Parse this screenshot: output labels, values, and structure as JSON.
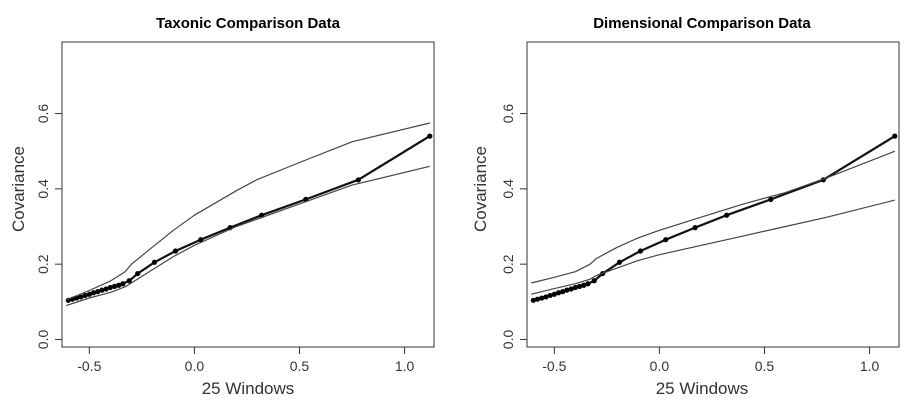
{
  "chart_data": [
    {
      "type": "line",
      "title": "Taxonic Comparison Data",
      "xlabel": "25 Windows",
      "ylabel": "Covariance",
      "xlim": [
        -0.63,
        1.14
      ],
      "ylim": [
        -0.02,
        0.79
      ],
      "xticks": [
        -0.5,
        0.0,
        0.5,
        1.0
      ],
      "xtick_labels": [
        "-0.5",
        "0.0",
        "0.5",
        "1.0"
      ],
      "yticks": [
        0.0,
        0.2,
        0.4,
        0.6
      ],
      "ytick_labels": [
        "0.0",
        "0.2",
        "0.4",
        "0.6"
      ],
      "grid": false,
      "series": [
        {
          "role": "observed",
          "markers": true,
          "x": [
            -0.6,
            -0.58,
            -0.56,
            -0.54,
            -0.52,
            -0.5,
            -0.48,
            -0.46,
            -0.44,
            -0.42,
            -0.4,
            -0.38,
            -0.36,
            -0.34,
            -0.31,
            -0.27,
            -0.19,
            -0.09,
            0.03,
            0.17,
            0.32,
            0.53,
            0.78,
            1.12
          ],
          "y": [
            0.104,
            0.107,
            0.11,
            0.113,
            0.117,
            0.12,
            0.124,
            0.127,
            0.131,
            0.134,
            0.138,
            0.141,
            0.144,
            0.148,
            0.156,
            0.175,
            0.205,
            0.235,
            0.265,
            0.297,
            0.33,
            0.372,
            0.424,
            0.54
          ]
        },
        {
          "role": "upper-band",
          "markers": false,
          "x": [
            -0.61,
            -0.5,
            -0.4,
            -0.33,
            -0.3,
            -0.2,
            -0.1,
            0.0,
            0.2,
            0.3,
            0.5,
            0.75,
            1.12
          ],
          "y": [
            0.105,
            0.13,
            0.155,
            0.18,
            0.2,
            0.245,
            0.29,
            0.33,
            0.395,
            0.425,
            0.47,
            0.525,
            0.575
          ]
        },
        {
          "role": "lower-band",
          "markers": false,
          "x": [
            -0.61,
            -0.5,
            -0.4,
            -0.33,
            -0.3,
            -0.2,
            -0.1,
            0.0,
            0.2,
            0.3,
            0.5,
            0.75,
            1.12
          ],
          "y": [
            0.09,
            0.11,
            0.125,
            0.14,
            0.15,
            0.185,
            0.22,
            0.25,
            0.3,
            0.32,
            0.36,
            0.41,
            0.46
          ]
        }
      ]
    },
    {
      "type": "line",
      "title": "Dimensional Comparison Data",
      "xlabel": "25 Windows",
      "ylabel": "Covariance",
      "xlim": [
        -0.63,
        1.14
      ],
      "ylim": [
        -0.02,
        0.79
      ],
      "xticks": [
        -0.5,
        0.0,
        0.5,
        1.0
      ],
      "xtick_labels": [
        "-0.5",
        "0.0",
        "0.5",
        "1.0"
      ],
      "yticks": [
        0.0,
        0.2,
        0.4,
        0.6
      ],
      "ytick_labels": [
        "0.0",
        "0.2",
        "0.4",
        "0.6"
      ],
      "grid": false,
      "series": [
        {
          "role": "observed",
          "markers": true,
          "x": [
            -0.6,
            -0.58,
            -0.56,
            -0.54,
            -0.52,
            -0.5,
            -0.48,
            -0.46,
            -0.44,
            -0.42,
            -0.4,
            -0.38,
            -0.36,
            -0.34,
            -0.31,
            -0.27,
            -0.19,
            -0.09,
            0.03,
            0.17,
            0.32,
            0.53,
            0.78,
            1.12
          ],
          "y": [
            0.104,
            0.107,
            0.11,
            0.113,
            0.117,
            0.12,
            0.124,
            0.127,
            0.131,
            0.134,
            0.138,
            0.141,
            0.144,
            0.148,
            0.156,
            0.175,
            0.205,
            0.235,
            0.265,
            0.297,
            0.33,
            0.372,
            0.424,
            0.54
          ]
        },
        {
          "role": "upper-band",
          "markers": false,
          "x": [
            -0.61,
            -0.5,
            -0.4,
            -0.33,
            -0.3,
            -0.2,
            -0.1,
            0.0,
            0.2,
            0.4,
            0.6,
            0.8,
            1.12
          ],
          "y": [
            0.15,
            0.165,
            0.18,
            0.2,
            0.215,
            0.245,
            0.27,
            0.29,
            0.325,
            0.36,
            0.39,
            0.43,
            0.5
          ]
        },
        {
          "role": "lower-band",
          "markers": false,
          "x": [
            -0.61,
            -0.5,
            -0.4,
            -0.33,
            -0.3,
            -0.2,
            -0.1,
            0.0,
            0.2,
            0.4,
            0.6,
            0.8,
            1.12
          ],
          "y": [
            0.12,
            0.135,
            0.148,
            0.16,
            0.17,
            0.19,
            0.21,
            0.225,
            0.25,
            0.275,
            0.3,
            0.325,
            0.37
          ]
        }
      ]
    }
  ]
}
